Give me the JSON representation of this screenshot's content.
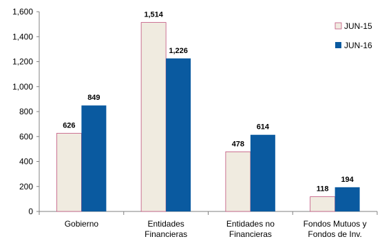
{
  "chart_data": {
    "type": "bar",
    "categories": [
      [
        "Gobierno"
      ],
      [
        "Entidades",
        "Financieras"
      ],
      [
        "Entidades no",
        "Financieras"
      ],
      [
        "Fondos Mutuos y",
        "Fondos de Inv."
      ]
    ],
    "series": [
      {
        "name": "JUN-15",
        "values": [
          626,
          1514,
          478,
          118
        ],
        "labels": [
          "626",
          "1,514",
          "478",
          "118"
        ],
        "color": "#f0ebe0",
        "border": "#c0507a"
      },
      {
        "name": "JUN-16",
        "values": [
          849,
          1226,
          614,
          194
        ],
        "labels": [
          "849",
          "1,226",
          "614",
          "194"
        ],
        "color": "#0a5aa0",
        "border": "#0a5aa0"
      }
    ],
    "ylim": [
      0,
      1600
    ],
    "yticks": [
      0,
      200,
      400,
      600,
      800,
      1000,
      1200,
      1400,
      1600
    ],
    "ytick_labels": [
      "0",
      "200",
      "400",
      "600",
      "800",
      "1,000",
      "1,200",
      "1,400",
      "1,600"
    ],
    "legend_position": "top-right",
    "grid": false
  }
}
